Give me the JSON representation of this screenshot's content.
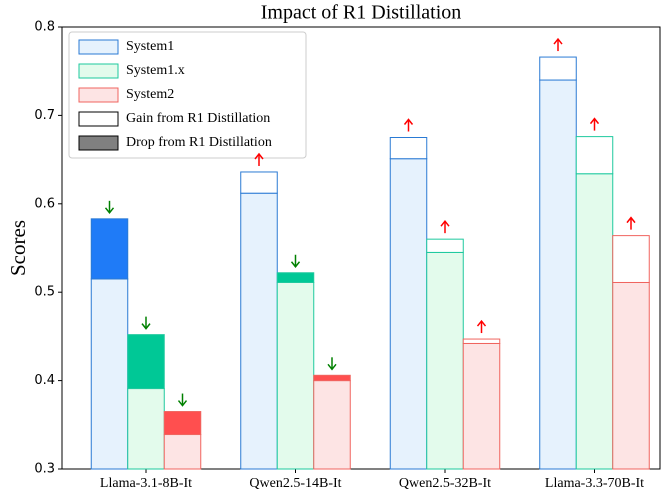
{
  "chart_data": {
    "type": "bar",
    "title": "Impact of R1 Distillation",
    "y_label": "Scores",
    "categories": [
      "Llama-3.1-8B-It",
      "Qwen2.5-14B-It",
      "Qwen2.5-32B-It",
      "Llama-3.3-70B-It"
    ],
    "series": [
      {
        "name": "System1",
        "color": "#2a7ad4",
        "fill": "#e6f2fd",
        "drop_color": "#1f7bf7",
        "values": [
          0.583,
          0.612,
          0.651,
          0.74
        ],
        "distilled": [
          0.515,
          0.636,
          0.675,
          0.766
        ]
      },
      {
        "name": "System1.x",
        "color": "#1ec99e",
        "fill": "#e3fbec",
        "drop_color": "#00c896",
        "values": [
          0.452,
          0.522,
          0.545,
          0.634
        ],
        "distilled": [
          0.391,
          0.511,
          0.56,
          0.676
        ]
      },
      {
        "name": "System2",
        "color": "#f0645f",
        "fill": "#fde4e4",
        "drop_color": "#ff4f4f",
        "values": [
          0.365,
          0.406,
          0.442,
          0.511
        ],
        "distilled": [
          0.339,
          0.4,
          0.447,
          0.564
        ]
      }
    ],
    "legend_extra": [
      "Gain from R1 Distillation",
      "Drop from R1 Distillation"
    ],
    "legend": "upper left",
    "ylim": [
      0.3,
      0.8
    ],
    "yticks": [
      0.3,
      0.4,
      0.5,
      0.6,
      0.7,
      0.8
    ],
    "gain_arrow_color": "#ff0000",
    "drop_arrow_color": "#008000"
  }
}
